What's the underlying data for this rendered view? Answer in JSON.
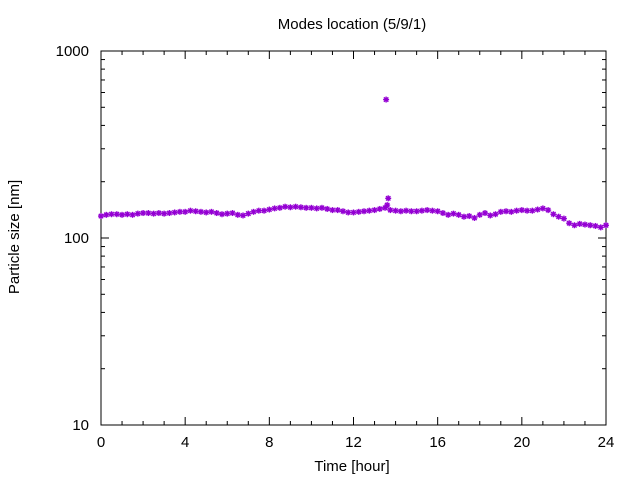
{
  "chart_data": {
    "type": "scatter",
    "title": "Modes location (5/9/1)",
    "xlabel": "Time [hour]",
    "ylabel": "Particle size [nm]",
    "xlim": [
      0,
      24
    ],
    "ylim": [
      10,
      1000
    ],
    "yscale": "log",
    "xticks": [
      0,
      4,
      8,
      12,
      16,
      20,
      24
    ],
    "xtick_labels": [
      "0",
      "4",
      "8",
      "12",
      "16",
      "20",
      "24"
    ],
    "yticks": [
      10,
      100,
      1000
    ],
    "ytick_labels": [
      "10",
      "100",
      "1000"
    ],
    "grid": false,
    "marker_color": "#9400d3",
    "series": [
      {
        "x": [
          0.0,
          0.25,
          0.5,
          0.75,
          1.0,
          1.25,
          1.5,
          1.75,
          2.0,
          2.25,
          2.5,
          2.75,
          3.0,
          3.25,
          3.5,
          3.75,
          4.0,
          4.25,
          4.5,
          4.75,
          5.0,
          5.25,
          5.5,
          5.75,
          6.0,
          6.25,
          6.5,
          6.75,
          7.0,
          7.25,
          7.5,
          7.75,
          8.0,
          8.25,
          8.5,
          8.75,
          9.0,
          9.25,
          9.5,
          9.75,
          10.0,
          10.25,
          10.5,
          10.75,
          11.0,
          11.25,
          11.5,
          11.75,
          12.0,
          12.25,
          12.5,
          12.75,
          13.0,
          13.25,
          13.5,
          13.55,
          13.6,
          13.65,
          13.75,
          14.0,
          14.25,
          14.5,
          14.75,
          15.0,
          15.25,
          15.5,
          15.75,
          16.0,
          16.25,
          16.5,
          16.75,
          17.0,
          17.25,
          17.5,
          17.75,
          18.0,
          18.25,
          18.5,
          18.75,
          19.0,
          19.25,
          19.5,
          19.75,
          20.0,
          20.25,
          20.5,
          20.75,
          21.0,
          21.25,
          21.5,
          21.75,
          22.0,
          22.25,
          22.5,
          22.75,
          23.0,
          23.25,
          23.5,
          23.75,
          24.0
        ],
        "y": [
          131,
          133,
          134,
          134,
          133,
          134,
          133,
          135,
          136,
          136,
          135,
          136,
          135,
          136,
          137,
          138,
          138,
          140,
          139,
          138,
          137,
          138,
          136,
          134,
          135,
          136,
          133,
          132,
          135,
          138,
          140,
          140,
          142,
          144,
          145,
          147,
          146,
          147,
          146,
          145,
          145,
          144,
          145,
          143,
          141,
          141,
          139,
          137,
          137,
          138,
          139,
          140,
          141,
          143,
          145,
          550,
          150,
          163,
          141,
          140,
          139,
          140,
          139,
          139,
          140,
          141,
          140,
          139,
          136,
          133,
          135,
          133,
          130,
          131,
          128,
          133,
          136,
          132,
          134,
          138,
          139,
          138,
          140,
          141,
          140,
          140,
          142,
          144,
          141,
          134,
          130,
          127,
          120,
          117,
          119,
          118,
          117,
          116,
          114,
          117
        ]
      }
    ]
  }
}
